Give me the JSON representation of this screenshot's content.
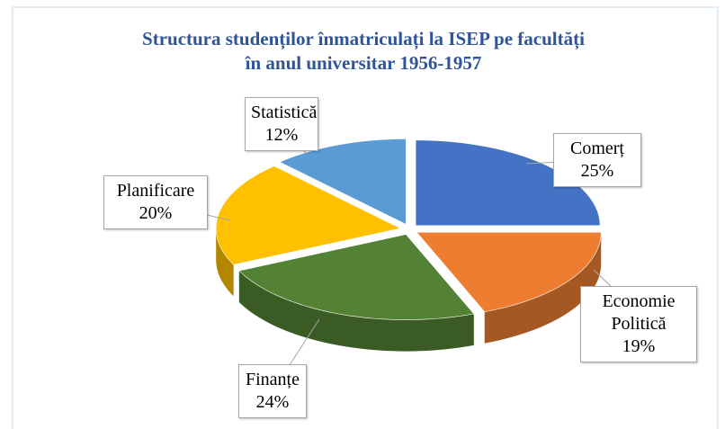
{
  "chart_data": {
    "type": "pie",
    "title": "Structura studenților înmatriculați la ISEP pe facultăți\nîn anul universitar 1956-1957",
    "categories": [
      "Comerț",
      "Economie Politică",
      "Finanțe",
      "Planificare",
      "Statistică"
    ],
    "values": [
      25,
      19,
      24,
      20,
      12
    ],
    "value_labels": [
      "25%",
      "19%",
      "24%",
      "20%",
      "12%"
    ],
    "colors": [
      "#4472c4",
      "#ed7d31",
      "#548235",
      "#ffc000",
      "#5b9bd5"
    ]
  }
}
